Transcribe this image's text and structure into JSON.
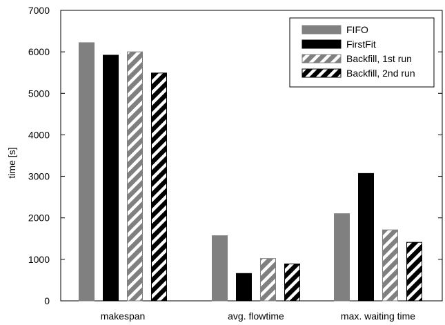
{
  "chart_data": {
    "type": "bar",
    "ylabel": "time [s]",
    "xlabel": "",
    "ylim": [
      0,
      7000
    ],
    "yticks": [
      0,
      1000,
      2000,
      3000,
      4000,
      5000,
      6000,
      7000
    ],
    "categories": [
      "makespan",
      "avg. flowtime",
      "max. waiting time"
    ],
    "series": [
      {
        "name": "FIFO",
        "values": [
          6220,
          1570,
          2100
        ],
        "color": "#808080",
        "pattern": "solid"
      },
      {
        "name": "FirstFit",
        "values": [
          5920,
          660,
          3070
        ],
        "color": "#000000",
        "pattern": "solid"
      },
      {
        "name": "Backfill, 1st run",
        "values": [
          6000,
          1020,
          1710
        ],
        "color": "#808080",
        "pattern": "hatched"
      },
      {
        "name": "Backfill, 2nd run",
        "values": [
          5490,
          890,
          1410
        ],
        "color": "#000000",
        "pattern": "hatched"
      }
    ],
    "legend_position": "top-right",
    "grid": false
  }
}
